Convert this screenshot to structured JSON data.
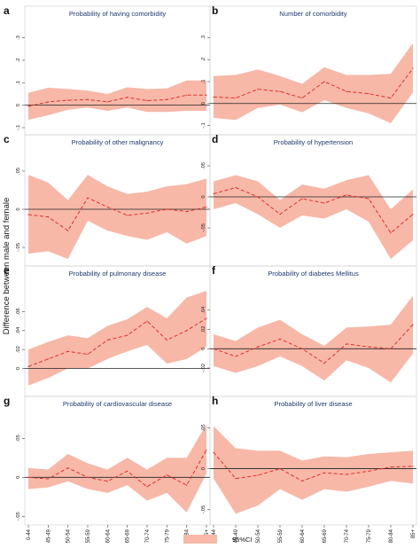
{
  "figure": {
    "y_axis_title": "Difference between male and female",
    "legend": {
      "label": "95%CI",
      "color": "#f7b8a8"
    },
    "colors": {
      "band": "#f7b8a8",
      "line": "#e0302a",
      "zero_line": "#222222",
      "title": "#1f3a6e"
    }
  },
  "chart_data": [
    {
      "letter": "a",
      "type": "line",
      "title": "Probability of having comorbidity",
      "categories": [
        "0-44",
        "45-49",
        "50-54",
        "55-59",
        "60-64",
        "65-69",
        "70-74",
        "75-79",
        "80-84",
        "85+"
      ],
      "ylim": [
        -0.1,
        0.33
      ],
      "yticks": [
        {
          "v": -0.1,
          "l": "-.1"
        },
        {
          "v": 0,
          "l": "0"
        },
        {
          "v": 0.1,
          "l": ".1"
        },
        {
          "v": 0.2,
          "l": ".2"
        },
        {
          "v": 0.3,
          "l": ".3"
        }
      ],
      "series": [
        {
          "values": [
            -0.005,
            0.015,
            0.022,
            0.025,
            0.015,
            0.035,
            0.02,
            0.025,
            0.045,
            0.045
          ],
          "lower": [
            -0.065,
            -0.045,
            -0.02,
            -0.01,
            -0.025,
            -0.01,
            -0.03,
            -0.03,
            -0.025,
            -0.025
          ],
          "upper": [
            0.055,
            0.078,
            0.072,
            0.065,
            0.05,
            0.08,
            0.072,
            0.075,
            0.11,
            0.11
          ]
        }
      ]
    },
    {
      "letter": "b",
      "type": "line",
      "title": "Number of comorbidity",
      "categories": [
        "0-44",
        "45-49",
        "50-54",
        "55-59",
        "60-64",
        "65-69",
        "70-74",
        "75-79",
        "80-84",
        "85+"
      ],
      "ylim": [
        -0.11,
        0.33
      ],
      "yticks": [
        {
          "v": -0.1,
          "l": "-.1"
        },
        {
          "v": 0,
          "l": "0"
        },
        {
          "v": 0.1,
          "l": ".1"
        },
        {
          "v": 0.2,
          "l": ".2"
        },
        {
          "v": 0.3,
          "l": ".3"
        }
      ],
      "series": [
        {
          "values": [
            0.03,
            0.025,
            0.065,
            0.055,
            0.025,
            0.1,
            0.055,
            0.045,
            0.025,
            0.16
          ],
          "lower": [
            -0.065,
            -0.075,
            -0.02,
            -0.005,
            -0.04,
            0.015,
            -0.02,
            -0.045,
            -0.09,
            0.05
          ],
          "upper": [
            0.125,
            0.13,
            0.155,
            0.125,
            0.09,
            0.165,
            0.13,
            0.13,
            0.135,
            0.275
          ]
        }
      ]
    },
    {
      "letter": "c",
      "type": "line",
      "title": "Probability of other malignancy",
      "categories": [
        "0-44",
        "45-49",
        "50-54",
        "55-59",
        "60-64",
        "65-69",
        "70-74",
        "75-79",
        "80-84",
        "85+"
      ],
      "ylim": [
        -0.065,
        0.065
      ],
      "yticks": [
        {
          "v": -0.05,
          "l": "-.05"
        },
        {
          "v": 0,
          "l": "0"
        },
        {
          "v": 0.05,
          "l": ".05"
        }
      ],
      "series": [
        {
          "values": [
            -0.007,
            -0.01,
            -0.028,
            0.015,
            0.003,
            -0.008,
            -0.005,
            0.0,
            -0.003,
            0.003
          ],
          "lower": [
            -0.058,
            -0.055,
            -0.065,
            -0.015,
            -0.028,
            -0.035,
            -0.04,
            -0.03,
            -0.045,
            -0.035
          ],
          "upper": [
            0.045,
            0.035,
            0.012,
            0.045,
            0.03,
            0.02,
            0.023,
            0.03,
            0.033,
            0.04
          ]
        }
      ]
    },
    {
      "letter": "d",
      "type": "line",
      "title": "Probability of hypertension",
      "categories": [
        "0-44",
        "45-49",
        "50-54",
        "55-59",
        "60-64",
        "65-69",
        "70-74",
        "75-79",
        "80-84",
        "85+"
      ],
      "ylim": [
        -0.1,
        0.06
      ],
      "yticks": [
        {
          "v": -0.05,
          "l": "-.05"
        },
        {
          "v": 0,
          "l": "0"
        },
        {
          "v": 0.05,
          "l": ".05"
        }
      ],
      "series": [
        {
          "values": [
            0.005,
            0.015,
            0.0,
            -0.028,
            -0.003,
            -0.01,
            0.003,
            -0.003,
            -0.058,
            -0.028
          ],
          "lower": [
            -0.02,
            -0.01,
            -0.028,
            -0.05,
            -0.03,
            -0.035,
            -0.02,
            -0.04,
            -0.1,
            -0.07
          ],
          "upper": [
            0.025,
            0.035,
            0.025,
            -0.005,
            0.02,
            0.013,
            0.027,
            0.035,
            -0.02,
            0.012
          ]
        }
      ]
    },
    {
      "letter": "e",
      "type": "line",
      "title": "Probability of pulmonary disease",
      "categories": [
        "0-44",
        "45-49",
        "50-54",
        "55-59",
        "60-64",
        "65-69",
        "70-74",
        "75-79",
        "80-84",
        "85+"
      ],
      "ylim": [
        -0.022,
        0.082
      ],
      "yticks": [
        {
          "v": 0,
          "l": "0"
        },
        {
          "v": 0.02,
          "l": ".02"
        },
        {
          "v": 0.04,
          "l": ".04"
        },
        {
          "v": 0.06,
          "l": ".06"
        }
      ],
      "series": [
        {
          "values": [
            0.002,
            0.01,
            0.018,
            0.015,
            0.03,
            0.035,
            0.05,
            0.03,
            0.04,
            0.053
          ],
          "lower": [
            -0.018,
            -0.01,
            0.0,
            0.0,
            0.01,
            0.018,
            0.025,
            0.005,
            0.01,
            0.023
          ],
          "upper": [
            0.02,
            0.028,
            0.035,
            0.032,
            0.045,
            0.052,
            0.065,
            0.053,
            0.075,
            0.082
          ]
        }
      ]
    },
    {
      "letter": "f",
      "type": "line",
      "title": "Probability of diabetes Mellitus",
      "categories": [
        "0-44",
        "45-49",
        "50-54",
        "55-59",
        "60-64",
        "65-69",
        "70-74",
        "75-79",
        "80-84",
        "85+"
      ],
      "ylim": [
        -0.042,
        0.06
      ],
      "yticks": [
        {
          "v": -0.02,
          "l": "-.02"
        },
        {
          "v": 0,
          "l": "0"
        },
        {
          "v": 0.02,
          "l": ".02"
        },
        {
          "v": 0.04,
          "l": ".04"
        }
      ],
      "series": [
        {
          "values": [
            0.0,
            -0.008,
            0.002,
            0.01,
            0.0,
            -0.015,
            0.005,
            0.002,
            0.0,
            0.025
          ],
          "lower": [
            -0.018,
            -0.025,
            -0.018,
            -0.008,
            -0.018,
            -0.033,
            -0.012,
            -0.02,
            -0.035,
            -0.005
          ],
          "upper": [
            0.015,
            0.008,
            0.022,
            0.03,
            0.015,
            0.003,
            0.022,
            0.023,
            0.025,
            0.055
          ]
        }
      ]
    },
    {
      "letter": "g",
      "type": "line",
      "title": "Probability of cardiovascular disease",
      "categories": [
        "0-44",
        "45-49",
        "50-54",
        "55-59",
        "60-64",
        "65-69",
        "70-74",
        "75-79",
        "80-84",
        "85+"
      ],
      "ylim": [
        -0.052,
        0.072
      ],
      "yticks": [
        {
          "v": -0.05,
          "l": "-.05"
        },
        {
          "v": 0,
          "l": "0"
        },
        {
          "v": 0.05,
          "l": ".05"
        }
      ],
      "series": [
        {
          "values": [
            0.0,
            -0.002,
            0.012,
            0.0,
            -0.005,
            0.008,
            -0.012,
            0.003,
            -0.01,
            0.035
          ],
          "lower": [
            -0.015,
            -0.013,
            -0.005,
            -0.015,
            -0.02,
            -0.01,
            -0.03,
            -0.02,
            -0.045,
            0.005
          ],
          "upper": [
            0.012,
            0.01,
            0.03,
            0.018,
            0.01,
            0.025,
            0.01,
            0.025,
            0.025,
            0.068
          ]
        }
      ]
    },
    {
      "letter": "h",
      "type": "line",
      "title": "Probability of liver disease",
      "categories": [
        "0-44",
        "45-49",
        "50-54",
        "55-59",
        "60-64",
        "65-69",
        "70-74",
        "75-79",
        "80-84",
        "85+"
      ],
      "ylim": [
        -0.06,
        0.058
      ],
      "yticks": [
        {
          "v": -0.05,
          "l": "-.05"
        },
        {
          "v": 0,
          "l": "0"
        },
        {
          "v": 0.05,
          "l": ".05"
        }
      ],
      "series": [
        {
          "values": [
            0.02,
            -0.012,
            -0.008,
            0.0,
            -0.015,
            -0.005,
            -0.007,
            -0.003,
            0.002,
            0.003
          ],
          "lower": [
            -0.012,
            -0.055,
            -0.045,
            -0.025,
            -0.038,
            -0.025,
            -0.028,
            -0.022,
            -0.015,
            -0.018
          ],
          "upper": [
            0.052,
            0.025,
            0.022,
            0.022,
            0.01,
            0.015,
            0.014,
            0.018,
            0.02,
            0.022
          ]
        }
      ]
    }
  ]
}
